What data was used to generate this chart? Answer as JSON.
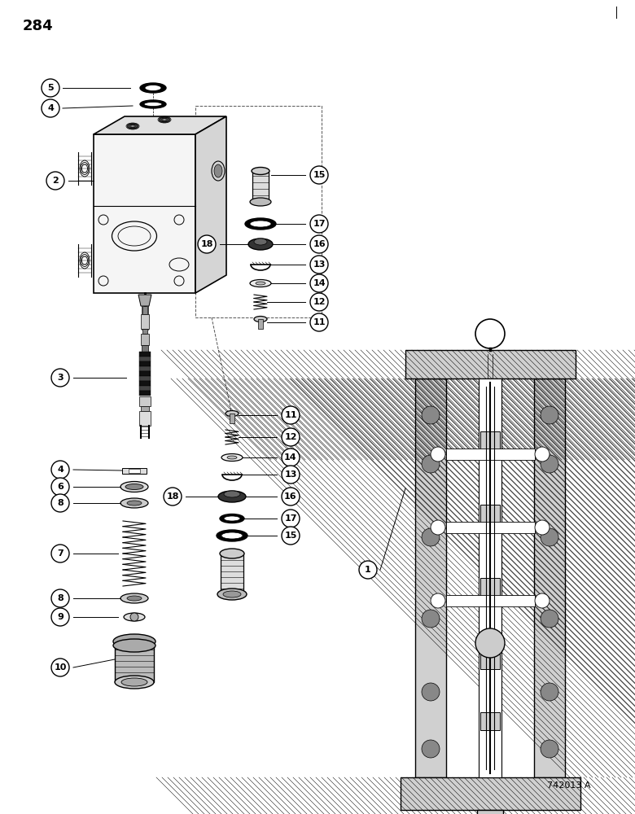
{
  "page_number": "284",
  "figure_number": "742013 A",
  "bg": "#ffffff",
  "lc": "#000000"
}
